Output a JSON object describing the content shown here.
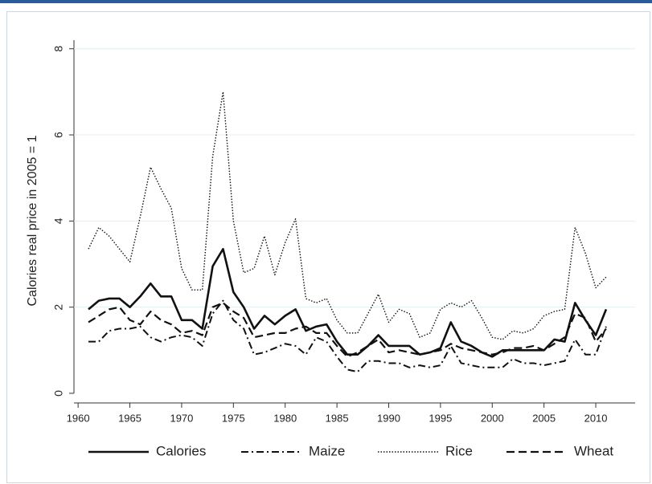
{
  "chart_data": {
    "type": "line",
    "y_label": "Calories real price in 2005 = 1",
    "x": [
      1961,
      1962,
      1963,
      1964,
      1965,
      1966,
      1967,
      1968,
      1969,
      1970,
      1971,
      1972,
      1973,
      1974,
      1975,
      1976,
      1977,
      1978,
      1979,
      1980,
      1981,
      1982,
      1983,
      1984,
      1985,
      1986,
      1987,
      1988,
      1989,
      1990,
      1991,
      1992,
      1993,
      1994,
      1995,
      1996,
      1997,
      1998,
      1999,
      2000,
      2001,
      2002,
      2003,
      2004,
      2005,
      2006,
      2007,
      2008,
      2009,
      2010,
      2011
    ],
    "series": [
      {
        "name": "Calories",
        "color": "#111111",
        "dash": "solid",
        "values": [
          1.95,
          2.15,
          2.2,
          2.2,
          2.0,
          2.25,
          2.55,
          2.25,
          2.25,
          1.7,
          1.7,
          1.5,
          2.95,
          3.35,
          2.35,
          2.0,
          1.5,
          1.8,
          1.6,
          1.8,
          1.95,
          1.45,
          1.55,
          1.6,
          1.2,
          0.9,
          0.9,
          1.1,
          1.35,
          1.1,
          1.1,
          1.1,
          0.9,
          0.95,
          1.05,
          1.65,
          1.2,
          1.1,
          0.95,
          0.85,
          1.0,
          1.0,
          1.0,
          1.0,
          1.0,
          1.25,
          1.2,
          2.1,
          1.7,
          1.35,
          1.95
        ]
      },
      {
        "name": "Maize",
        "color": "#111111",
        "dash": "dashdot",
        "values": [
          1.2,
          1.2,
          1.45,
          1.5,
          1.5,
          1.55,
          1.3,
          1.2,
          1.3,
          1.35,
          1.3,
          1.1,
          1.85,
          2.15,
          1.7,
          1.5,
          0.9,
          0.95,
          1.05,
          1.15,
          1.1,
          0.9,
          1.3,
          1.2,
          0.85,
          0.55,
          0.5,
          0.75,
          0.75,
          0.7,
          0.7,
          0.6,
          0.65,
          0.6,
          0.65,
          1.1,
          0.7,
          0.65,
          0.6,
          0.6,
          0.6,
          0.8,
          0.7,
          0.7,
          0.65,
          0.7,
          0.75,
          1.25,
          0.9,
          0.9,
          1.55
        ]
      },
      {
        "name": "Rice",
        "color": "#111111",
        "dash": "dot",
        "values": [
          3.35,
          3.85,
          3.65,
          3.35,
          3.05,
          4.1,
          5.25,
          4.75,
          4.3,
          2.9,
          2.4,
          2.4,
          5.5,
          7.0,
          4.0,
          2.8,
          2.9,
          3.65,
          2.75,
          3.5,
          4.05,
          2.2,
          2.1,
          2.2,
          1.7,
          1.4,
          1.4,
          1.85,
          2.3,
          1.65,
          1.95,
          1.85,
          1.3,
          1.4,
          1.95,
          2.1,
          2.0,
          2.15,
          1.75,
          1.3,
          1.25,
          1.45,
          1.4,
          1.5,
          1.8,
          1.9,
          1.95,
          3.85,
          3.25,
          2.45,
          2.7
        ]
      },
      {
        "name": "Wheat",
        "color": "#111111",
        "dash": "dash",
        "values": [
          1.65,
          1.8,
          1.95,
          2.0,
          1.7,
          1.6,
          1.9,
          1.7,
          1.6,
          1.4,
          1.45,
          1.35,
          2.0,
          2.1,
          1.9,
          1.75,
          1.3,
          1.35,
          1.4,
          1.4,
          1.5,
          1.55,
          1.4,
          1.4,
          1.1,
          0.85,
          0.95,
          1.1,
          1.25,
          0.95,
          1.0,
          0.95,
          0.9,
          0.95,
          1.0,
          1.15,
          1.05,
          1.0,
          0.95,
          0.9,
          0.95,
          1.05,
          1.05,
          1.1,
          1.0,
          1.15,
          1.3,
          1.85,
          1.75,
          1.2,
          1.5
        ]
      }
    ],
    "xlim": [
      1959.6,
      2013.8
    ],
    "xticks": [
      1960,
      1965,
      1970,
      1975,
      1980,
      1985,
      1990,
      1995,
      2000,
      2005,
      2010
    ],
    "ylim": [
      0,
      8.2
    ],
    "yticks": [
      0,
      2,
      4,
      6,
      8
    ],
    "grid": true,
    "legend": "bottom"
  }
}
